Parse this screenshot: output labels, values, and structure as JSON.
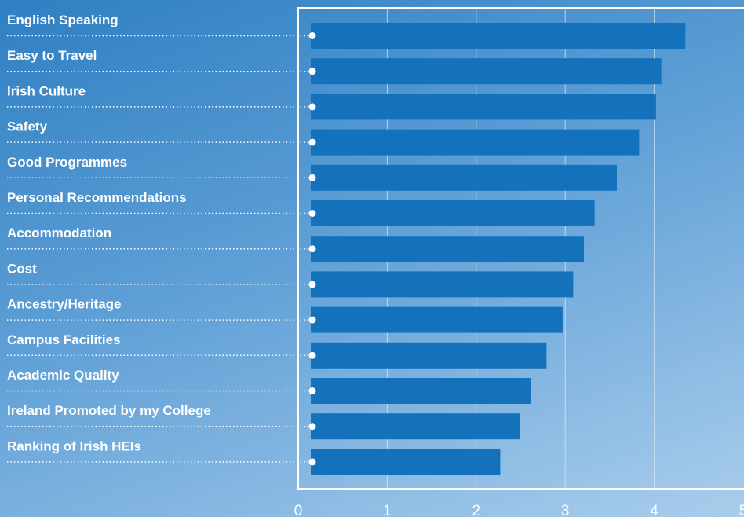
{
  "chart_data": {
    "type": "bar",
    "orientation": "horizontal",
    "categories": [
      "English Speaking",
      "Easy to Travel",
      "Irish Culture",
      "Safety",
      "Good Programmes",
      "Personal Recommendations",
      "Accommodation",
      "Cost",
      "Ancestry/Heritage",
      "Campus Facilities",
      "Academic Quality",
      "Ireland Promoted by my College",
      "Ranking of Irish HEIs"
    ],
    "values": [
      4.35,
      4.08,
      4.02,
      3.83,
      3.58,
      3.33,
      3.21,
      3.09,
      2.97,
      2.79,
      2.61,
      2.49,
      2.27
    ],
    "xlim": [
      0,
      5
    ],
    "xticks": [
      "0",
      "1",
      "2",
      "3",
      "4",
      "5"
    ],
    "grid": true,
    "colors": {
      "bar": "#1472bc",
      "grid": "#d6e8f6",
      "frame": "#ffffff",
      "text": "#ffffff"
    }
  }
}
